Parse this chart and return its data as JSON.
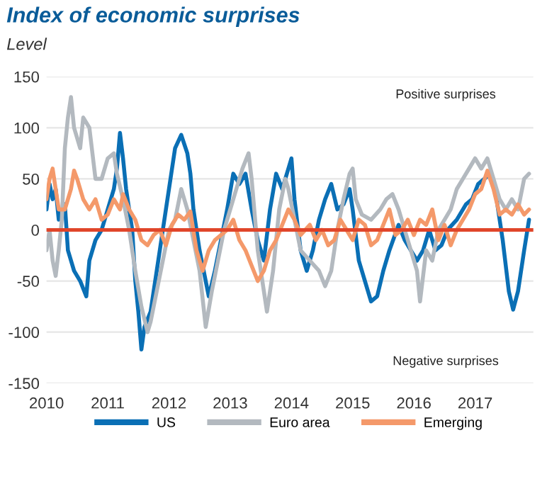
{
  "chart_data": {
    "type": "line",
    "title": "Index of economic surprises",
    "subtitle": "Level",
    "xlim": [
      2010,
      2017.95
    ],
    "xticks": [
      2010,
      2011,
      2012,
      2013,
      2014,
      2015,
      2016,
      2017
    ],
    "ylim": [
      -150,
      150
    ],
    "yticks": [
      -150,
      -100,
      -50,
      0,
      50,
      100,
      150
    ],
    "grid": "y",
    "legend": "bottom",
    "line_style": "solid",
    "marker": "none",
    "ref_lines": [
      {
        "axis": "y",
        "value": 0,
        "color": "#e0452a"
      }
    ],
    "annotations": [
      "Positive surprises",
      "Negative surprises"
    ],
    "series": [
      {
        "name": "US",
        "color": "#0a6fb5",
        "x": [
          2010.0,
          2010.05,
          2010.1,
          2010.15,
          2010.2,
          2010.3,
          2010.35,
          2010.45,
          2010.55,
          2010.65,
          2010.7,
          2010.8,
          2010.9,
          2011.0,
          2011.1,
          2011.15,
          2011.2,
          2011.25,
          2011.3,
          2011.4,
          2011.45,
          2011.5,
          2011.55,
          2011.6,
          2011.7,
          2011.75,
          2011.85,
          2011.95,
          2012.05,
          2012.1,
          2012.2,
          2012.3,
          2012.35,
          2012.4,
          2012.5,
          2012.6,
          2012.65,
          2012.75,
          2012.85,
          2012.95,
          2013.05,
          2013.15,
          2013.25,
          2013.35,
          2013.45,
          2013.55,
          2013.65,
          2013.75,
          2013.85,
          2013.95,
          2014.0,
          2014.05,
          2014.15,
          2014.25,
          2014.35,
          2014.45,
          2014.55,
          2014.65,
          2014.75,
          2014.85,
          2014.95,
          2015.0,
          2015.1,
          2015.2,
          2015.3,
          2015.4,
          2015.5,
          2015.6,
          2015.75,
          2015.85,
          2015.95,
          2016.05,
          2016.15,
          2016.25,
          2016.35,
          2016.45,
          2016.55,
          2016.7,
          2016.85,
          2016.95,
          2017.05,
          2017.15,
          2017.25,
          2017.35,
          2017.45,
          2017.55,
          2017.62,
          2017.7,
          2017.8,
          2017.88
        ],
        "values": [
          20,
          45,
          30,
          40,
          10,
          25,
          -20,
          -40,
          -50,
          -65,
          -30,
          -10,
          0,
          20,
          40,
          60,
          95,
          70,
          40,
          0,
          -50,
          -80,
          -117,
          -95,
          -80,
          -60,
          -20,
          20,
          60,
          80,
          93,
          75,
          55,
          20,
          -20,
          -50,
          -65,
          -40,
          -10,
          20,
          55,
          45,
          55,
          20,
          -10,
          -30,
          20,
          55,
          40,
          60,
          70,
          30,
          -20,
          -40,
          -20,
          10,
          30,
          45,
          20,
          25,
          40,
          20,
          -30,
          -50,
          -70,
          -65,
          -40,
          -20,
          5,
          -10,
          -20,
          -30,
          -20,
          0,
          -20,
          -15,
          0,
          10,
          25,
          30,
          45,
          50,
          55,
          30,
          -10,
          -60,
          -78,
          -60,
          -20,
          10
        ]
      },
      {
        "name": "Euro area",
        "color": "#b3b9bf",
        "x": [
          2010.0,
          2010.05,
          2010.1,
          2010.15,
          2010.2,
          2010.25,
          2010.3,
          2010.35,
          2010.4,
          2010.45,
          2010.55,
          2010.6,
          2010.7,
          2010.8,
          2010.9,
          2011.0,
          2011.1,
          2011.15,
          2011.25,
          2011.35,
          2011.45,
          2011.55,
          2011.65,
          2011.7,
          2011.8,
          2011.9,
          2012.0,
          2012.1,
          2012.2,
          2012.3,
          2012.4,
          2012.5,
          2012.6,
          2012.7,
          2012.8,
          2012.9,
          2013.0,
          2013.1,
          2013.2,
          2013.3,
          2013.35,
          2013.45,
          2013.55,
          2013.6,
          2013.7,
          2013.8,
          2013.9,
          2013.95,
          2014.05,
          2014.15,
          2014.3,
          2014.45,
          2014.55,
          2014.65,
          2014.75,
          2014.85,
          2014.95,
          2015.0,
          2015.05,
          2015.15,
          2015.3,
          2015.45,
          2015.55,
          2015.65,
          2015.75,
          2015.85,
          2015.95,
          2016.05,
          2016.1,
          2016.2,
          2016.3,
          2016.4,
          2016.5,
          2016.6,
          2016.7,
          2016.8,
          2016.9,
          2017.0,
          2017.1,
          2017.2,
          2017.3,
          2017.4,
          2017.5,
          2017.6,
          2017.7,
          2017.8,
          2017.88
        ],
        "values": [
          -20,
          0,
          -30,
          -45,
          -20,
          10,
          80,
          110,
          130,
          100,
          80,
          110,
          100,
          50,
          50,
          70,
          75,
          55,
          30,
          0,
          -40,
          -75,
          -100,
          -90,
          -60,
          -30,
          0,
          10,
          40,
          20,
          -10,
          -40,
          -95,
          -60,
          -30,
          0,
          20,
          40,
          60,
          75,
          50,
          -20,
          -60,
          -80,
          -40,
          20,
          50,
          40,
          10,
          -20,
          -30,
          -40,
          -55,
          -40,
          0,
          30,
          55,
          60,
          30,
          15,
          10,
          20,
          30,
          35,
          20,
          0,
          -20,
          -40,
          -70,
          -20,
          -30,
          0,
          10,
          20,
          40,
          50,
          60,
          70,
          60,
          70,
          50,
          30,
          20,
          30,
          20,
          50,
          55
        ]
      },
      {
        "name": "Emerging",
        "color": "#f4996a",
        "x": [
          2010.0,
          2010.05,
          2010.1,
          2010.15,
          2010.2,
          2010.3,
          2010.4,
          2010.45,
          2010.5,
          2010.6,
          2010.7,
          2010.8,
          2010.9,
          2011.0,
          2011.1,
          2011.2,
          2011.25,
          2011.35,
          2011.45,
          2011.55,
          2011.65,
          2011.75,
          2011.85,
          2011.95,
          2012.05,
          2012.15,
          2012.25,
          2012.35,
          2012.45,
          2012.55,
          2012.65,
          2012.75,
          2012.85,
          2012.95,
          2013.05,
          2013.15,
          2013.25,
          2013.35,
          2013.45,
          2013.55,
          2013.65,
          2013.75,
          2013.85,
          2013.95,
          2014.05,
          2014.15,
          2014.3,
          2014.4,
          2014.5,
          2014.6,
          2014.7,
          2014.8,
          2014.9,
          2015.0,
          2015.1,
          2015.2,
          2015.3,
          2015.4,
          2015.5,
          2015.6,
          2015.7,
          2015.8,
          2015.9,
          2016.0,
          2016.1,
          2016.2,
          2016.3,
          2016.4,
          2016.5,
          2016.6,
          2016.7,
          2016.8,
          2016.9,
          2017.0,
          2017.1,
          2017.2,
          2017.3,
          2017.4,
          2017.5,
          2017.6,
          2017.7,
          2017.8,
          2017.88
        ],
        "values": [
          30,
          50,
          60,
          40,
          20,
          20,
          40,
          58,
          50,
          30,
          20,
          30,
          10,
          15,
          30,
          20,
          35,
          20,
          10,
          -10,
          -15,
          -5,
          0,
          -15,
          5,
          15,
          10,
          18,
          -20,
          -40,
          -20,
          -10,
          -5,
          0,
          10,
          -10,
          -20,
          -35,
          -50,
          -40,
          -20,
          -10,
          5,
          20,
          10,
          -5,
          5,
          -10,
          0,
          -15,
          -10,
          10,
          0,
          -10,
          10,
          5,
          -15,
          -10,
          5,
          20,
          -5,
          0,
          10,
          -5,
          10,
          5,
          20,
          -10,
          5,
          -15,
          0,
          10,
          20,
          35,
          40,
          58,
          40,
          15,
          20,
          15,
          25,
          15,
          20
        ]
      }
    ]
  }
}
